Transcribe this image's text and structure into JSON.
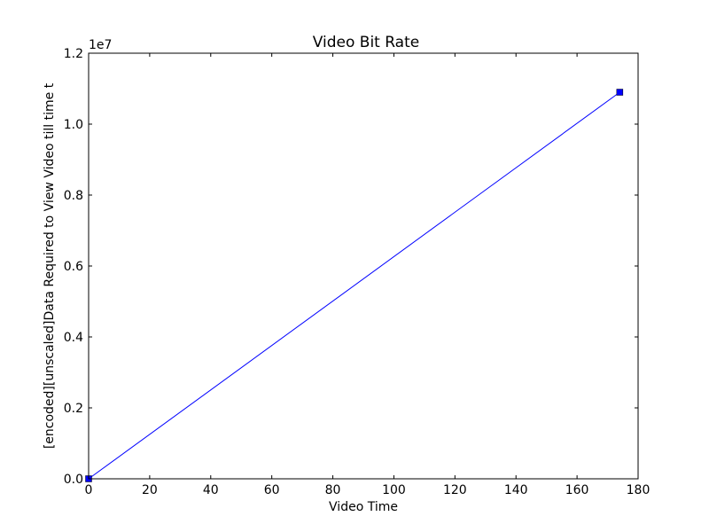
{
  "chart_data": {
    "type": "line",
    "title": "Video Bit Rate",
    "xlabel": "Video Time",
    "ylabel": "[encoded][unscaled]Data Required to View Video till time t",
    "y_offset_label": "1e7",
    "xlim": [
      0,
      180
    ],
    "ylim": [
      0,
      1.2
    ],
    "x_ticks": [
      0,
      20,
      40,
      60,
      80,
      100,
      120,
      140,
      160,
      180
    ],
    "x_tick_labels": [
      "0",
      "20",
      "40",
      "60",
      "80",
      "100",
      "120",
      "140",
      "160",
      "180"
    ],
    "y_ticks": [
      0.0,
      0.2,
      0.4,
      0.6,
      0.8,
      1.0,
      1.2
    ],
    "y_tick_labels": [
      "0.0",
      "0.2",
      "0.4",
      "0.6",
      "0.8",
      "1.0",
      "1.2"
    ],
    "grid": false,
    "legend": "none",
    "series": [
      {
        "color": "#0000ff",
        "marker": "square",
        "x": [
          0,
          174
        ],
        "y": [
          0.0,
          1.09
        ]
      }
    ]
  }
}
